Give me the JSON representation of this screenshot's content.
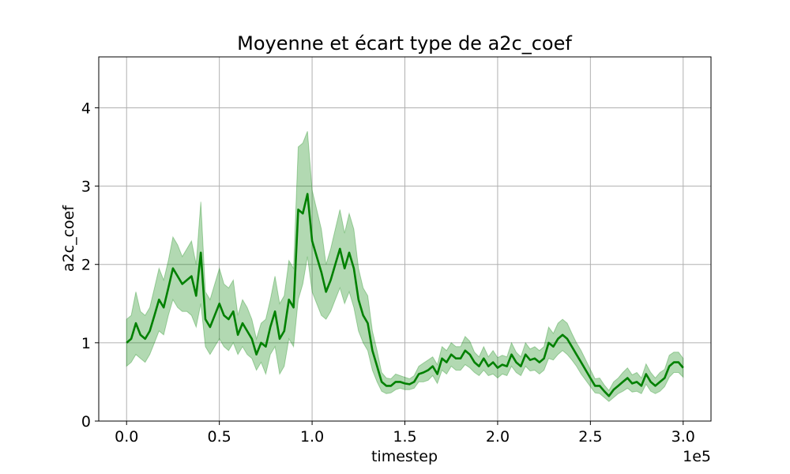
{
  "chart_data": {
    "type": "line",
    "title": "Moyenne et écart type de a2c_coef",
    "xlabel": "timestep",
    "ylabel": "a2c_coef",
    "x_offset_text": "1e5",
    "xlim": [
      -0.15,
      3.15
    ],
    "ylim": [
      0,
      4.65
    ],
    "x_ticks": [
      0.0,
      0.5,
      1.0,
      1.5,
      2.0,
      2.5,
      3.0
    ],
    "x_tick_labels": [
      "0.0",
      "0.5",
      "1.0",
      "1.5",
      "2.0",
      "2.5",
      "3.0"
    ],
    "y_ticks": [
      0,
      1,
      2,
      3,
      4
    ],
    "y_tick_labels": [
      "0",
      "1",
      "2",
      "3",
      "4"
    ],
    "grid": true,
    "colors": {
      "line": "#008000",
      "band": "#008000"
    },
    "series": [
      {
        "x": [
          0.0,
          0.025,
          0.05,
          0.075,
          0.1,
          0.125,
          0.15,
          0.175,
          0.2,
          0.225,
          0.25,
          0.275,
          0.3,
          0.325,
          0.35,
          0.375,
          0.4,
          0.425,
          0.45,
          0.475,
          0.5,
          0.525,
          0.55,
          0.575,
          0.6,
          0.625,
          0.65,
          0.675,
          0.7,
          0.725,
          0.75,
          0.775,
          0.8,
          0.825,
          0.85,
          0.875,
          0.9,
          0.925,
          0.95,
          0.975,
          1.0,
          1.025,
          1.05,
          1.075,
          1.1,
          1.125,
          1.15,
          1.175,
          1.2,
          1.225,
          1.25,
          1.275,
          1.3,
          1.325,
          1.35,
          1.375,
          1.4,
          1.425,
          1.45,
          1.475,
          1.5,
          1.525,
          1.55,
          1.575,
          1.6,
          1.625,
          1.65,
          1.675,
          1.7,
          1.725,
          1.75,
          1.775,
          1.8,
          1.825,
          1.85,
          1.875,
          1.9,
          1.925,
          1.95,
          1.975,
          2.0,
          2.025,
          2.05,
          2.075,
          2.1,
          2.125,
          2.15,
          2.175,
          2.2,
          2.225,
          2.25,
          2.275,
          2.3,
          2.325,
          2.35,
          2.375,
          2.4,
          2.425,
          2.45,
          2.475,
          2.5,
          2.525,
          2.55,
          2.575,
          2.6,
          2.625,
          2.65,
          2.675,
          2.7,
          2.725,
          2.75,
          2.775,
          2.8,
          2.825,
          2.85,
          2.875,
          2.9,
          2.925,
          2.95,
          2.975,
          3.0
        ],
        "y": [
          1.0,
          1.05,
          1.25,
          1.1,
          1.05,
          1.15,
          1.35,
          1.55,
          1.45,
          1.7,
          1.95,
          1.85,
          1.75,
          1.8,
          1.85,
          1.6,
          2.15,
          1.3,
          1.2,
          1.35,
          1.5,
          1.35,
          1.3,
          1.4,
          1.1,
          1.25,
          1.15,
          1.05,
          0.85,
          1.0,
          0.95,
          1.2,
          1.4,
          1.05,
          1.15,
          1.55,
          1.45,
          2.7,
          2.65,
          2.9,
          2.3,
          2.1,
          1.9,
          1.65,
          1.8,
          2.0,
          2.2,
          1.95,
          2.15,
          1.95,
          1.55,
          1.35,
          1.25,
          0.9,
          0.7,
          0.5,
          0.45,
          0.45,
          0.5,
          0.5,
          0.48,
          0.47,
          0.5,
          0.6,
          0.62,
          0.65,
          0.7,
          0.6,
          0.8,
          0.75,
          0.85,
          0.8,
          0.8,
          0.9,
          0.85,
          0.75,
          0.7,
          0.8,
          0.7,
          0.75,
          0.68,
          0.72,
          0.7,
          0.85,
          0.75,
          0.7,
          0.85,
          0.78,
          0.8,
          0.75,
          0.8,
          1.0,
          0.95,
          1.05,
          1.1,
          1.05,
          0.95,
          0.85,
          0.75,
          0.65,
          0.55,
          0.45,
          0.45,
          0.38,
          0.32,
          0.4,
          0.45,
          0.5,
          0.55,
          0.48,
          0.5,
          0.45,
          0.6,
          0.5,
          0.45,
          0.5,
          0.55,
          0.7,
          0.75,
          0.75,
          0.68
        ],
        "lower": [
          0.7,
          0.75,
          0.85,
          0.8,
          0.75,
          0.85,
          1.0,
          1.15,
          1.1,
          1.35,
          1.55,
          1.45,
          1.4,
          1.4,
          1.35,
          1.2,
          1.5,
          0.95,
          0.85,
          0.95,
          1.05,
          0.95,
          0.9,
          1.0,
          0.85,
          0.95,
          0.85,
          0.8,
          0.65,
          0.75,
          0.6,
          0.85,
          0.95,
          0.6,
          0.7,
          1.05,
          0.95,
          1.55,
          1.75,
          2.1,
          1.65,
          1.5,
          1.35,
          1.3,
          1.4,
          1.55,
          1.7,
          1.5,
          1.65,
          1.45,
          1.15,
          1.0,
          0.9,
          0.65,
          0.5,
          0.38,
          0.35,
          0.36,
          0.4,
          0.42,
          0.4,
          0.4,
          0.42,
          0.5,
          0.5,
          0.52,
          0.58,
          0.48,
          0.65,
          0.6,
          0.7,
          0.65,
          0.65,
          0.72,
          0.68,
          0.62,
          0.58,
          0.65,
          0.58,
          0.6,
          0.55,
          0.6,
          0.58,
          0.7,
          0.62,
          0.58,
          0.7,
          0.64,
          0.65,
          0.6,
          0.65,
          0.8,
          0.78,
          0.85,
          0.9,
          0.85,
          0.78,
          0.7,
          0.6,
          0.52,
          0.44,
          0.36,
          0.35,
          0.3,
          0.25,
          0.3,
          0.35,
          0.38,
          0.42,
          0.37,
          0.38,
          0.35,
          0.47,
          0.38,
          0.35,
          0.38,
          0.44,
          0.56,
          0.62,
          0.62,
          0.56
        ],
        "upper": [
          1.3,
          1.35,
          1.65,
          1.4,
          1.35,
          1.45,
          1.7,
          1.95,
          1.8,
          2.05,
          2.35,
          2.25,
          2.1,
          2.2,
          2.3,
          2.0,
          2.8,
          1.65,
          1.55,
          1.75,
          1.95,
          1.75,
          1.7,
          1.8,
          1.35,
          1.55,
          1.45,
          1.3,
          1.05,
          1.25,
          1.3,
          1.55,
          1.85,
          1.5,
          1.6,
          2.05,
          1.95,
          3.5,
          3.55,
          3.7,
          2.95,
          2.7,
          2.45,
          2.0,
          2.2,
          2.45,
          2.7,
          2.4,
          2.65,
          2.45,
          1.95,
          1.7,
          1.6,
          1.15,
          0.9,
          0.62,
          0.55,
          0.54,
          0.6,
          0.58,
          0.56,
          0.54,
          0.58,
          0.7,
          0.74,
          0.78,
          0.82,
          0.72,
          0.95,
          0.9,
          1.0,
          0.95,
          0.95,
          1.08,
          1.02,
          0.88,
          0.82,
          0.95,
          0.82,
          0.9,
          0.81,
          0.84,
          0.82,
          1.0,
          0.88,
          0.82,
          1.0,
          0.92,
          0.95,
          0.9,
          0.95,
          1.2,
          1.12,
          1.25,
          1.3,
          1.25,
          1.12,
          1.0,
          0.9,
          0.78,
          0.66,
          0.54,
          0.55,
          0.46,
          0.39,
          0.5,
          0.55,
          0.62,
          0.68,
          0.59,
          0.62,
          0.55,
          0.73,
          0.62,
          0.55,
          0.62,
          0.66,
          0.84,
          0.88,
          0.88,
          0.8
        ]
      }
    ]
  }
}
